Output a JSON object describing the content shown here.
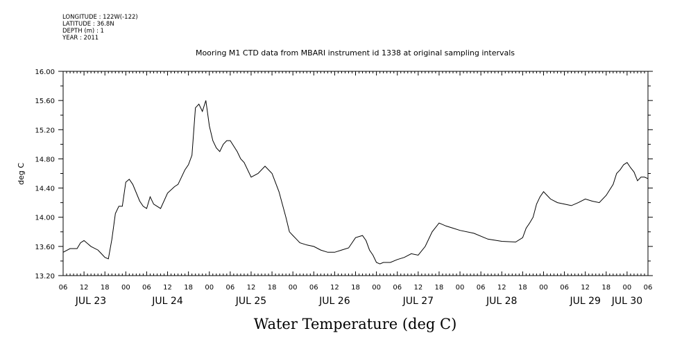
{
  "header": {
    "longitude": "LONGITUDE : 122W(-122)",
    "latitude": "LATITUDE : 36.8N",
    "depth": "DEPTH (m) : 1",
    "year": "YEAR : 2011"
  },
  "chart_data": {
    "type": "line",
    "title": "Mooring M1 CTD data from MBARI instrument id 1338 at original sampling intervals",
    "xlabel": "Water Temperature (deg C)",
    "ylabel": "deg C",
    "xlim": [
      "JUL 23 06:00",
      "JUL 30 06:00"
    ],
    "ylim": [
      13.2,
      16.0
    ],
    "hour_tick_labels": [
      "06",
      "12",
      "18",
      "00",
      "06",
      "12",
      "18",
      "00",
      "06",
      "12",
      "18",
      "00",
      "06",
      "12",
      "18",
      "00",
      "06",
      "12",
      "18",
      "00",
      "06",
      "12",
      "18",
      "00",
      "06",
      "12",
      "18",
      "00",
      "06"
    ],
    "day_labels": [
      "JUL 23",
      "JUL 24",
      "JUL 25",
      "JUL 26",
      "JUL 27",
      "JUL 28",
      "JUL 29",
      "JUL 30"
    ],
    "y_tick_labels": [
      "13.20",
      "13.60",
      "14.00",
      "14.40",
      "14.80",
      "15.20",
      "15.60",
      "16.00"
    ],
    "grid": false,
    "series": [
      {
        "x": [
          "JUL 23 06:00",
          "JUL 23 08:00",
          "JUL 23 10:00",
          "JUL 23 11:00",
          "JUL 23 12:00",
          "JUL 23 14:00",
          "JUL 23 16:00",
          "JUL 23 17:00",
          "JUL 23 18:00",
          "JUL 23 19:00",
          "JUL 23 20:00",
          "JUL 23 21:00",
          "JUL 23 22:00",
          "JUL 23 23:00",
          "JUL 24 00:00",
          "JUL 24 01:00",
          "JUL 24 02:00",
          "JUL 24 04:00",
          "JUL 24 05:00",
          "JUL 24 06:00",
          "JUL 24 07:00",
          "JUL 24 08:00",
          "JUL 24 10:00",
          "JUL 24 12:00",
          "JUL 24 14:00",
          "JUL 24 15:00",
          "JUL 24 16:00",
          "JUL 24 17:00",
          "JUL 24 18:00",
          "JUL 24 19:00",
          "JUL 24 20:00",
          "JUL 24 21:00",
          "JUL 24 22:00",
          "JUL 24 23:00",
          "JUL 25 00:00",
          "JUL 25 01:00",
          "JUL 25 02:00",
          "JUL 25 03:00",
          "JUL 25 04:00",
          "JUL 25 05:00",
          "JUL 25 06:00",
          "JUL 25 08:00",
          "JUL 25 09:00",
          "JUL 25 10:00",
          "JUL 25 12:00",
          "JUL 25 14:00",
          "JUL 25 16:00",
          "JUL 25 18:00",
          "JUL 25 20:00",
          "JUL 25 22:00",
          "JUL 25 23:00",
          "JUL 26 00:00",
          "JUL 26 01:00",
          "JUL 26 02:00",
          "JUL 26 04:00",
          "JUL 26 06:00",
          "JUL 26 08:00",
          "JUL 26 10:00",
          "JUL 26 12:00",
          "JUL 26 14:00",
          "JUL 26 16:00",
          "JUL 26 17:00",
          "JUL 26 18:00",
          "JUL 26 20:00",
          "JUL 26 21:00",
          "JUL 26 22:00",
          "JUL 26 23:00",
          "JUL 27 00:00",
          "JUL 27 01:00",
          "JUL 27 02:00",
          "JUL 27 04:00",
          "JUL 27 06:00",
          "JUL 27 08:00",
          "JUL 27 10:00",
          "JUL 27 12:00",
          "JUL 27 14:00",
          "JUL 27 16:00",
          "JUL 27 18:00",
          "JUL 27 20:00",
          "JUL 27 22:00",
          "JUL 28 00:00",
          "JUL 28 04:00",
          "JUL 28 08:00",
          "JUL 28 12:00",
          "JUL 28 16:00",
          "JUL 28 18:00",
          "JUL 28 19:00",
          "JUL 28 20:00",
          "JUL 28 21:00",
          "JUL 28 22:00",
          "JUL 28 23:00",
          "JUL 29 00:00",
          "JUL 29 01:00",
          "JUL 29 02:00",
          "JUL 29 04:00",
          "JUL 29 06:00",
          "JUL 29 08:00",
          "JUL 29 10:00",
          "JUL 29 12:00",
          "JUL 29 14:00",
          "JUL 29 16:00",
          "JUL 29 18:00",
          "JUL 29 20:00",
          "JUL 29 21:00",
          "JUL 29 22:00",
          "JUL 29 23:00",
          "JUL 30 00:00",
          "JUL 30 01:00",
          "JUL 30 02:00",
          "JUL 30 03:00",
          "JUL 30 04:00",
          "JUL 30 05:00",
          "JUL 30 06:00"
        ],
        "y": [
          13.52,
          13.57,
          13.57,
          13.65,
          13.68,
          13.6,
          13.55,
          13.5,
          13.45,
          13.43,
          13.7,
          14.05,
          14.15,
          14.15,
          14.48,
          14.52,
          14.45,
          14.22,
          14.15,
          14.12,
          14.28,
          14.18,
          14.12,
          14.33,
          14.42,
          14.45,
          14.55,
          14.65,
          14.72,
          14.85,
          15.5,
          15.55,
          15.45,
          15.6,
          15.25,
          15.05,
          14.95,
          14.9,
          15.0,
          15.05,
          15.05,
          14.9,
          14.8,
          14.75,
          14.55,
          14.6,
          14.7,
          14.6,
          14.35,
          14.0,
          13.8,
          13.75,
          13.7,
          13.65,
          13.62,
          13.6,
          13.55,
          13.52,
          13.52,
          13.55,
          13.58,
          13.65,
          13.72,
          13.75,
          13.68,
          13.55,
          13.48,
          13.38,
          13.36,
          13.38,
          13.38,
          13.42,
          13.45,
          13.5,
          13.48,
          13.6,
          13.8,
          13.92,
          13.88,
          13.85,
          13.82,
          13.78,
          13.7,
          13.67,
          13.66,
          13.72,
          13.85,
          13.92,
          14.0,
          14.18,
          14.28,
          14.35,
          14.3,
          14.25,
          14.2,
          14.18,
          14.16,
          14.2,
          14.25,
          14.22,
          14.2,
          14.3,
          14.45,
          14.6,
          14.65,
          14.72,
          14.75,
          14.68,
          14.62,
          14.5,
          14.55,
          14.55,
          14.53
        ]
      }
    ]
  }
}
